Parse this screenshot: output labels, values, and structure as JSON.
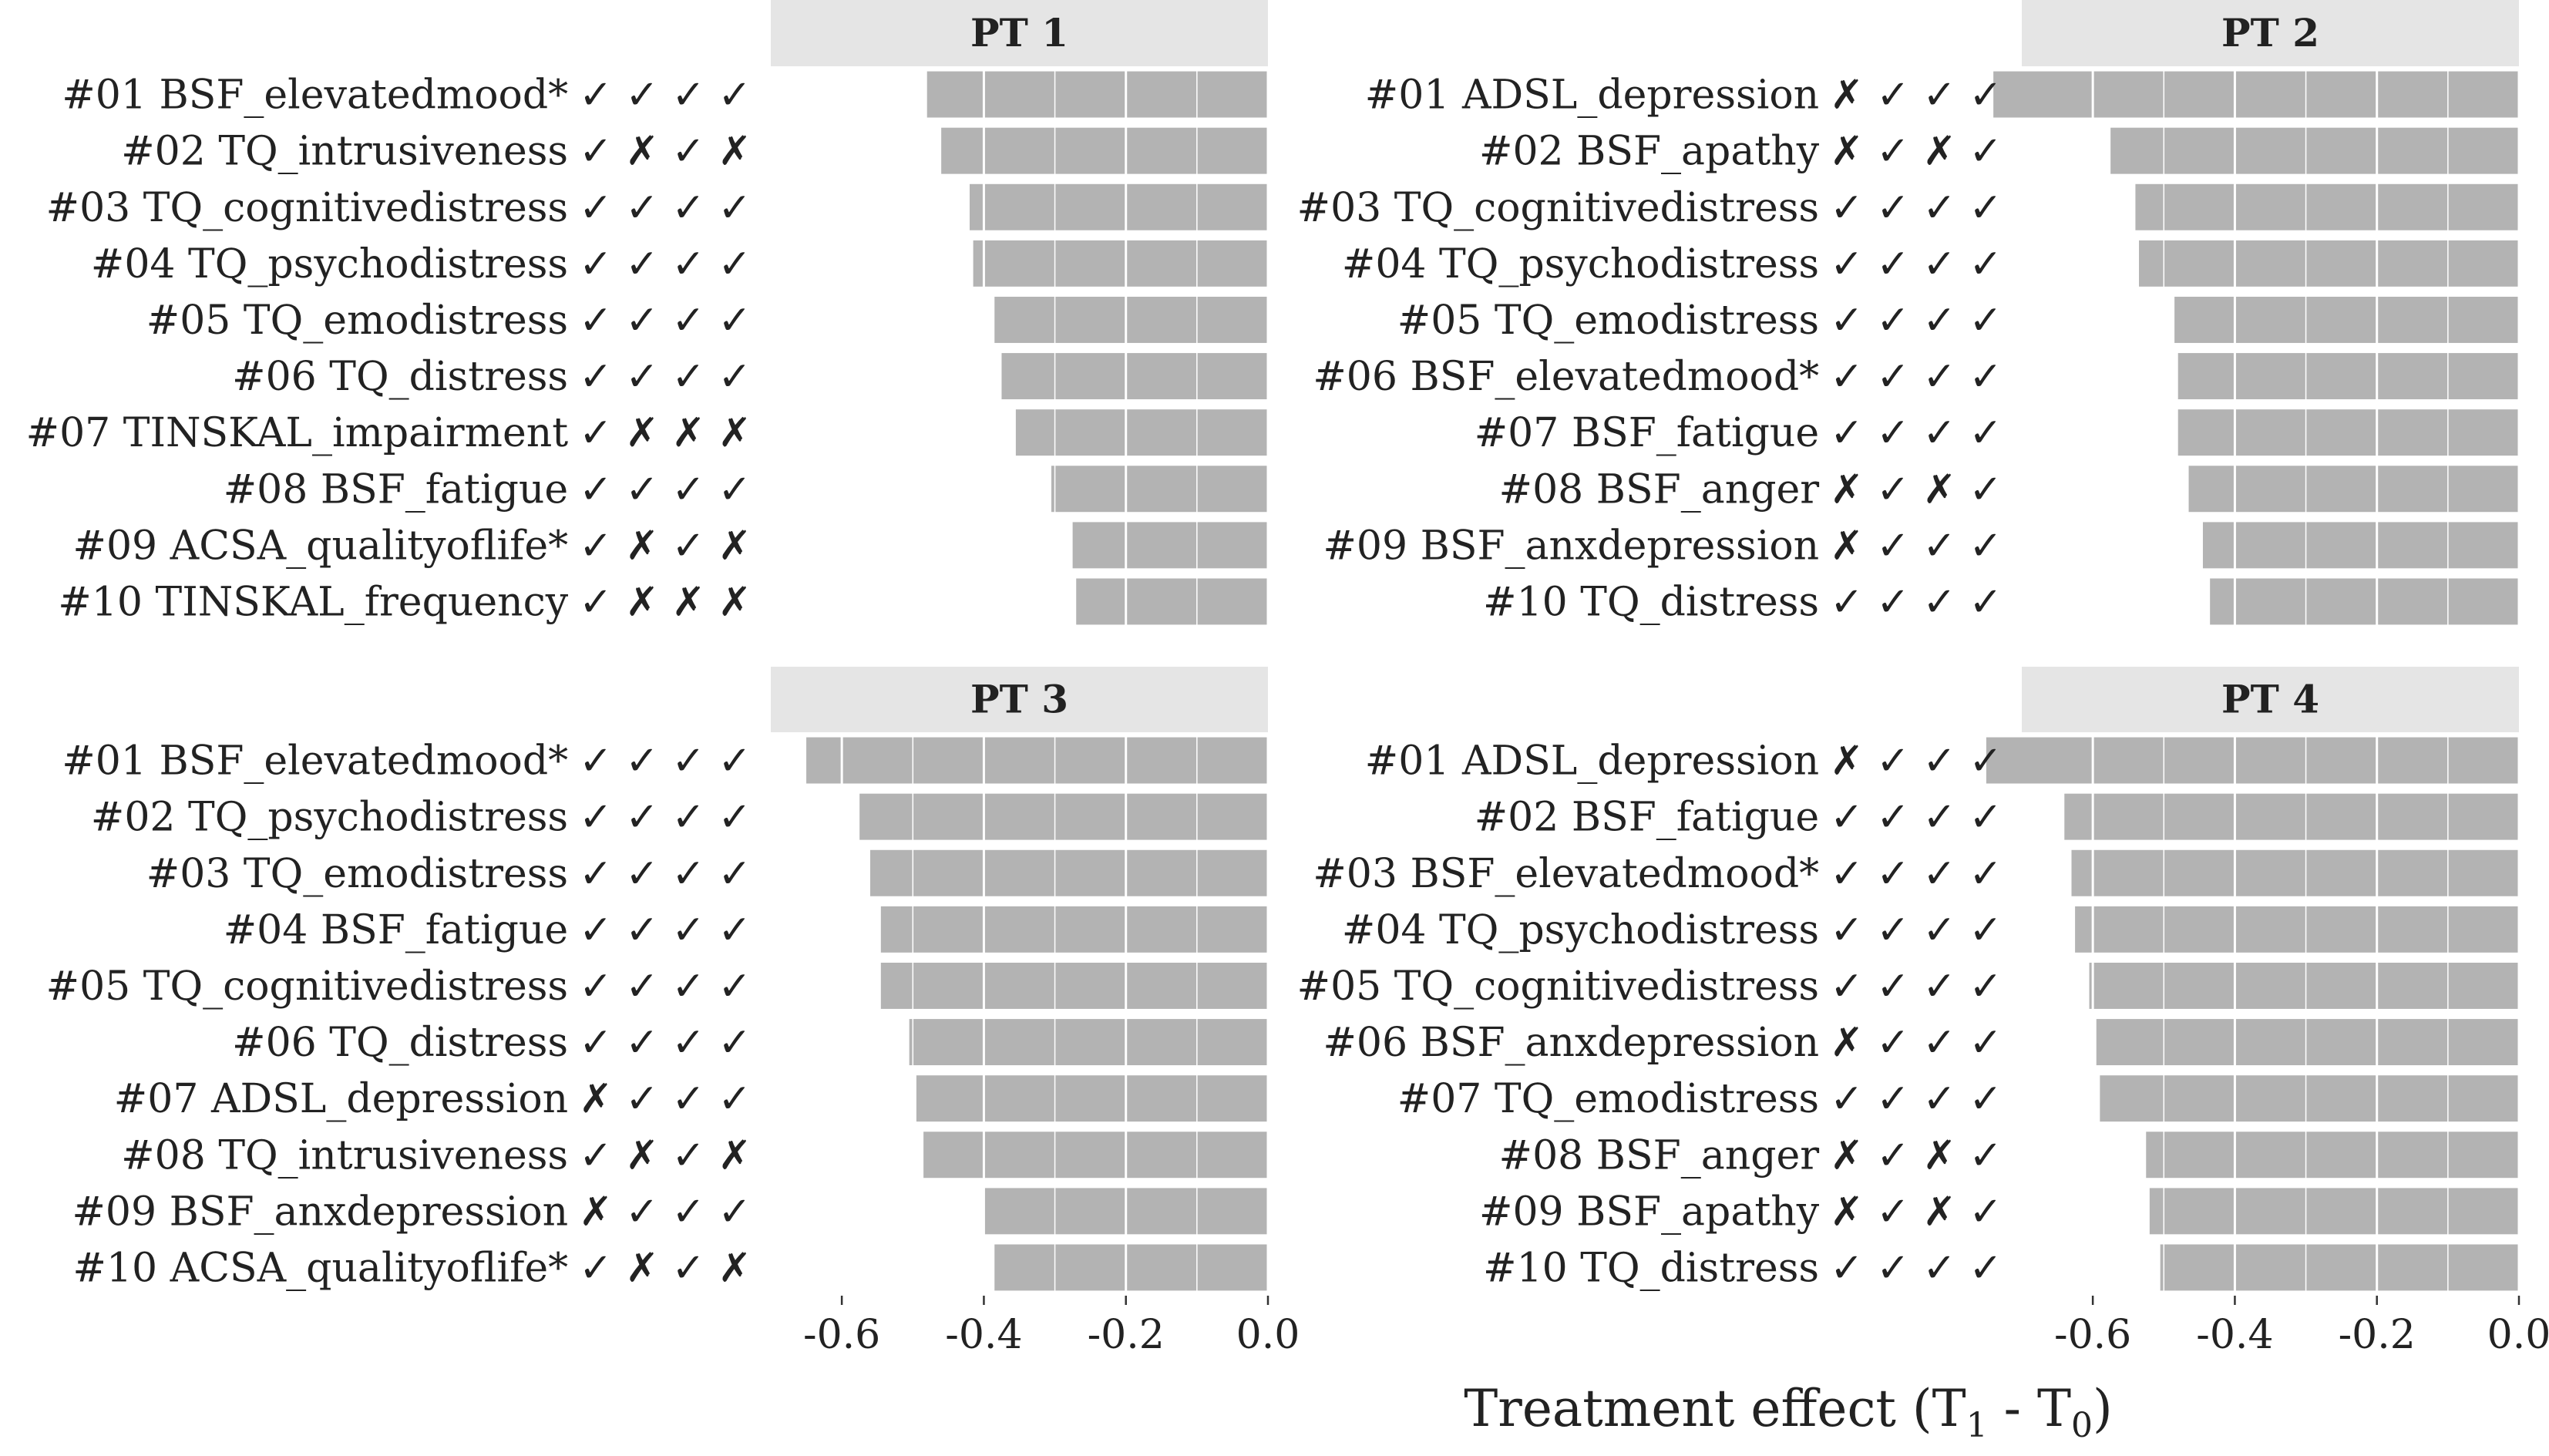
{
  "chart_data": {
    "type": "bar",
    "orientation": "horizontal",
    "xlabel": "Treatment effect (T",
    "xlabel_parts": [
      "Treatment effect (T",
      "1",
      " - T",
      "0",
      ")"
    ],
    "xlim": [
      -0.7,
      0.0
    ],
    "xticks": [
      -0.6,
      -0.4,
      -0.2,
      0.0
    ],
    "xtick_labels": [
      "-0.6",
      "-0.4",
      "-0.2",
      "0.0"
    ],
    "grid": true,
    "bar_color": "#b3b3b3",
    "strip_color": "#e5e5e5",
    "gridline_color": "#ffffff",
    "panels": [
      {
        "name": "PT 1",
        "rows": [
          {
            "label": "#01 BSF_elevatedmood*",
            "marks": "✓ ✓ ✓ ✓",
            "value": -0.48
          },
          {
            "label": "#02 TQ_intrusiveness",
            "marks": "✓ ✗ ✓ ✗",
            "value": -0.46
          },
          {
            "label": "#03 TQ_cognitivedistress",
            "marks": "✓ ✓ ✓ ✓",
            "value": -0.42
          },
          {
            "label": "#04 TQ_psychodistress",
            "marks": "✓ ✓ ✓ ✓",
            "value": -0.415
          },
          {
            "label": "#05 TQ_emodistress",
            "marks": "✓ ✓ ✓ ✓",
            "value": -0.385
          },
          {
            "label": "#06 TQ_distress",
            "marks": "✓ ✓ ✓ ✓",
            "value": -0.375
          },
          {
            "label": "#07 TINSKAL_impairment",
            "marks": "✓ ✗ ✗ ✗",
            "value": -0.355
          },
          {
            "label": "#08 BSF_fatigue",
            "marks": "✓ ✓ ✓ ✓",
            "value": -0.305
          },
          {
            "label": "#09 ACSA_qualityoflife*",
            "marks": "✓ ✗ ✓ ✗",
            "value": -0.275
          },
          {
            "label": "#10 TINSKAL_frequency",
            "marks": "✓ ✗ ✗ ✗",
            "value": -0.27
          }
        ]
      },
      {
        "name": "PT 2",
        "rows": [
          {
            "label": "#01 ADSL_depression",
            "marks": "✗ ✓ ✓ ✓",
            "value": -0.74
          },
          {
            "label": "#02 BSF_apathy",
            "marks": "✗ ✓ ✗ ✓",
            "value": -0.575
          },
          {
            "label": "#03 TQ_cognitivedistress",
            "marks": "✓ ✓ ✓ ✓",
            "value": -0.54
          },
          {
            "label": "#04 TQ_psychodistress",
            "marks": "✓ ✓ ✓ ✓",
            "value": -0.535
          },
          {
            "label": "#05 TQ_emodistress",
            "marks": "✓ ✓ ✓ ✓",
            "value": -0.485
          },
          {
            "label": "#06 BSF_elevatedmood*",
            "marks": "✓ ✓ ✓ ✓",
            "value": -0.48
          },
          {
            "label": "#07 BSF_fatigue",
            "marks": "✓ ✓ ✓ ✓",
            "value": -0.48
          },
          {
            "label": "#08 BSF_anger",
            "marks": "✗ ✓ ✗ ✓",
            "value": -0.465
          },
          {
            "label": "#09 BSF_anxdepression",
            "marks": "✗ ✓ ✓ ✓",
            "value": -0.445
          },
          {
            "label": "#10 TQ_distress",
            "marks": "✓ ✓ ✓ ✓",
            "value": -0.435
          }
        ]
      },
      {
        "name": "PT 3",
        "rows": [
          {
            "label": "#01 BSF_elevatedmood*",
            "marks": "✓ ✓ ✓ ✓",
            "value": -0.65
          },
          {
            "label": "#02 TQ_psychodistress",
            "marks": "✓ ✓ ✓ ✓",
            "value": -0.575
          },
          {
            "label": "#03 TQ_emodistress",
            "marks": "✓ ✓ ✓ ✓",
            "value": -0.56
          },
          {
            "label": "#04 BSF_fatigue",
            "marks": "✓ ✓ ✓ ✓",
            "value": -0.545
          },
          {
            "label": "#05 TQ_cognitivedistress",
            "marks": "✓ ✓ ✓ ✓",
            "value": -0.545
          },
          {
            "label": "#06 TQ_distress",
            "marks": "✓ ✓ ✓ ✓",
            "value": -0.505
          },
          {
            "label": "#07 ADSL_depression",
            "marks": "✗ ✓ ✓ ✓",
            "value": -0.495
          },
          {
            "label": "#08 TQ_intrusiveness",
            "marks": "✓ ✗ ✓ ✗",
            "value": -0.485
          },
          {
            "label": "#09 BSF_anxdepression",
            "marks": "✗ ✓ ✓ ✓",
            "value": -0.4
          },
          {
            "label": "#10 ACSA_qualityoflife*",
            "marks": "✓ ✗ ✓ ✗",
            "value": -0.385
          }
        ]
      },
      {
        "name": "PT 4",
        "rows": [
          {
            "label": "#01 ADSL_depression",
            "marks": "✗ ✓ ✓ ✓",
            "value": -0.75
          },
          {
            "label": "#02 BSF_fatigue",
            "marks": "✓ ✓ ✓ ✓",
            "value": -0.64
          },
          {
            "label": "#03 BSF_elevatedmood*",
            "marks": "✓ ✓ ✓ ✓",
            "value": -0.63
          },
          {
            "label": "#04 TQ_psychodistress",
            "marks": "✓ ✓ ✓ ✓",
            "value": -0.625
          },
          {
            "label": "#05 TQ_cognitivedistress",
            "marks": "✓ ✓ ✓ ✓",
            "value": -0.605
          },
          {
            "label": "#06 BSF_anxdepression",
            "marks": "✗ ✓ ✓ ✓",
            "value": -0.595
          },
          {
            "label": "#07 TQ_emodistress",
            "marks": "✓ ✓ ✓ ✓",
            "value": -0.59
          },
          {
            "label": "#08 BSF_anger",
            "marks": "✗ ✓ ✗ ✓",
            "value": -0.525
          },
          {
            "label": "#09 BSF_apathy",
            "marks": "✗ ✓ ✗ ✓",
            "value": -0.52
          },
          {
            "label": "#10 TQ_distress",
            "marks": "✓ ✓ ✓ ✓",
            "value": -0.505
          }
        ]
      }
    ]
  }
}
